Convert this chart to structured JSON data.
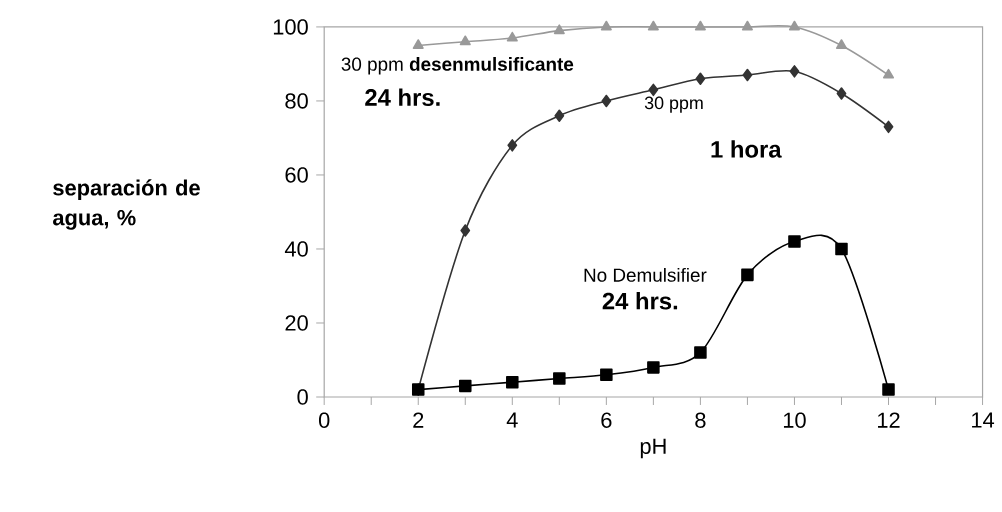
{
  "chart_data": {
    "type": "line",
    "xlabel": "pH",
    "ylabel": "separación de agua, %",
    "xlim": [
      0,
      14
    ],
    "ylim": [
      0,
      100
    ],
    "xticks": [
      0,
      {
        "value": 1,
        "label": null
      },
      2,
      {
        "value": 3,
        "label": null
      },
      4,
      {
        "value": 5,
        "label": null
      },
      6,
      {
        "value": 7,
        "label": null
      },
      8,
      {
        "value": 9,
        "label": null
      },
      10,
      {
        "value": 11,
        "label": null
      },
      12,
      {
        "value": 13,
        "label": null
      },
      14
    ],
    "yticks": [
      0,
      20,
      40,
      60,
      80,
      100
    ],
    "grid": false,
    "line_style": "solid",
    "x": [
      2,
      3,
      4,
      5,
      6,
      7,
      8,
      9,
      10,
      11,
      12
    ],
    "series": [
      {
        "color": "#999999",
        "marker": "triangle",
        "values": [
          95,
          96,
          97,
          99,
          100,
          100,
          100,
          100,
          100,
          95,
          87
        ]
      },
      {
        "color": "#333333",
        "marker": "diamond",
        "values": [
          2,
          45,
          68,
          76,
          80,
          83,
          86,
          87,
          88,
          82,
          73
        ]
      },
      {
        "color": "#000000",
        "marker": "square",
        "values": [
          2,
          3,
          4,
          5,
          6,
          8,
          12,
          33,
          42,
          40,
          2
        ]
      }
    ],
    "annotations": [
      "30 ppm **desenmulsificante**",
      "24 hrs.",
      "30 ppm",
      "1 hora",
      "No Demulsifier",
      "24 hrs."
    ]
  }
}
